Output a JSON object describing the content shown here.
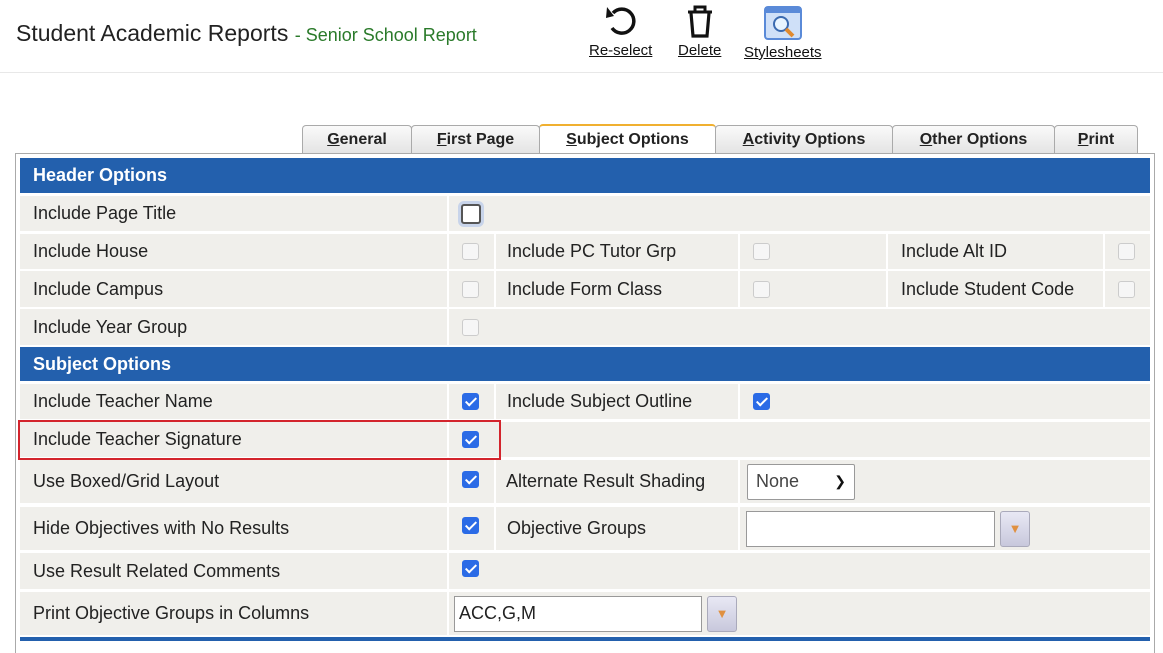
{
  "header": {
    "title": "Student Academic Reports",
    "subtitle": "- Senior School Report"
  },
  "toolbar": [
    {
      "label": "Re-select",
      "icon": "undo-icon"
    },
    {
      "label": "Delete",
      "icon": "trash-icon"
    },
    {
      "label": "Stylesheets",
      "icon": "magnifier-window-icon"
    }
  ],
  "tabs": [
    {
      "label": "General",
      "key": "G",
      "active": false
    },
    {
      "label": "First Page",
      "key": "F",
      "active": false
    },
    {
      "label": "Subject Options",
      "key": "S",
      "active": true
    },
    {
      "label": "Activity Options",
      "key": "A",
      "active": false
    },
    {
      "label": "Other Options",
      "key": "O",
      "active": false
    },
    {
      "label": "Print",
      "key": "P",
      "active": false
    }
  ],
  "sections": {
    "header_options": "Header Options",
    "subject_options": "Subject Options"
  },
  "header_rows": [
    {
      "label": "Include Page Title",
      "checked": false
    },
    {
      "label": "Include House",
      "checked": false,
      "disabled": true
    },
    {
      "label": "Include PC Tutor Grp",
      "checked": false,
      "disabled": true
    },
    {
      "label": "Include Alt ID",
      "checked": false,
      "disabled": true
    },
    {
      "label": "Include Campus",
      "checked": false,
      "disabled": true
    },
    {
      "label": "Include Form Class",
      "checked": false,
      "disabled": true
    },
    {
      "label": "Include Student Code",
      "checked": false,
      "disabled": true
    },
    {
      "label": "Include Year Group",
      "checked": false,
      "disabled": true
    }
  ],
  "subject_rows": [
    {
      "label": "Include Teacher Name",
      "checked": true
    },
    {
      "label": "Include Subject Outline",
      "checked": true
    },
    {
      "label": "Include Teacher Signature",
      "checked": true,
      "highlighted": true
    },
    {
      "label": "Use Boxed/Grid Layout",
      "checked": true
    },
    {
      "label": "Alternate Result Shading",
      "value": "None"
    },
    {
      "label": "Hide Objectives with No Results",
      "checked": true
    },
    {
      "label": "Objective Groups",
      "value": ""
    },
    {
      "label": "Use Result Related Comments",
      "checked": true
    },
    {
      "label": "Print Objective Groups in Columns",
      "value": "ACC,G,M"
    }
  ],
  "colors": {
    "section_header": "#2360ad",
    "highlight": "#d3242c",
    "checkbox": "#2b6be6"
  }
}
